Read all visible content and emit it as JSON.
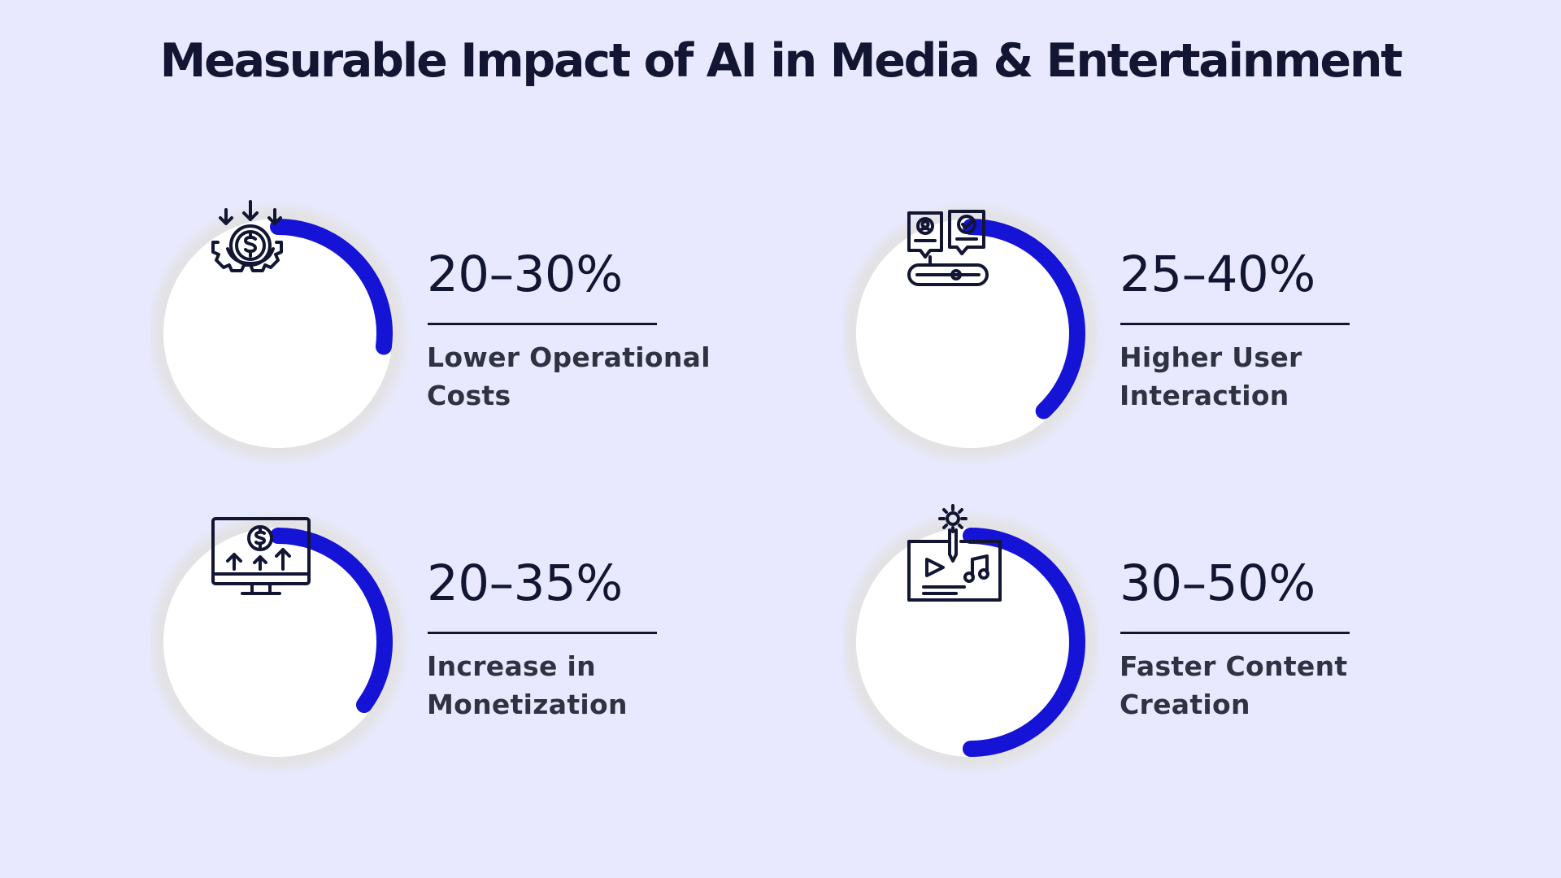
{
  "title": "Measurable Impact of AI in Media & Entertainment",
  "colors": {
    "background": "#e8e9fe",
    "accent": "#1513d6",
    "text": "#121632"
  },
  "stats": [
    {
      "value": "20–30%",
      "label_line1": "Lower Operational",
      "label_line2": "Costs",
      "icon": "gear-dollar-cost-down-icon",
      "progress": 0.27
    },
    {
      "value": "25–40%",
      "label_line1": "Higher User",
      "label_line2": "Interaction",
      "icon": "user-feedback-slider-icon",
      "progress": 0.38
    },
    {
      "value": "20–35%",
      "label_line1": "Increase in",
      "label_line2": "Monetization",
      "icon": "monitor-revenue-growth-icon",
      "progress": 0.35
    },
    {
      "value": "30–50%",
      "label_line1": "Faster Content",
      "label_line2": "Creation",
      "icon": "content-creation-media-icon",
      "progress": 0.5
    }
  ]
}
